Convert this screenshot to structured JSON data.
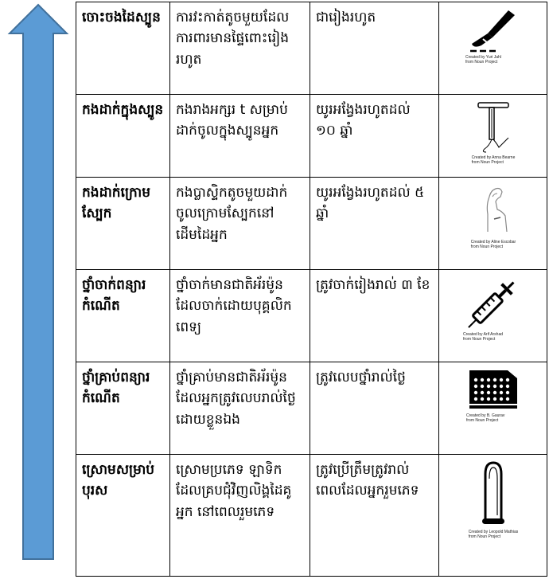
{
  "colors": {
    "arrow_fill": "#5b9bd5",
    "arrow_stroke": "#41719c",
    "border": "#000000"
  },
  "rows": [
    {
      "method": "ចោះចងដៃស្បូន",
      "description": "ការវះកាត់តូចមួយដែលការពារមានផ្ទៃពោះរៀងរហូត",
      "duration": "ជារៀងរហូត",
      "icon": "scalpel-icon",
      "credit": [
        "Created by Yuri Jahl",
        "from Noun Project"
      ]
    },
    {
      "method": "កងដាក់ក្នុងស្បូន",
      "description": "កងរាងអក្សរ t សម្រាប់ដាក់ចូលក្នុងស្បូនអ្នក",
      "duration": "យូរអង្វែងរហូតដល់ ១០ ឆ្នាំ",
      "icon": "iud-icon",
      "credit": [
        "Created by Anna Bearne",
        "from Noun Project"
      ]
    },
    {
      "method": "កងដាក់ក្រោមស្បែក",
      "description": "កងប្លាស្ទិកតូចមួយដាក់ចូលក្រោមស្បែកនៅដើមដៃអ្នក",
      "duration": "យូរអង្វែងរហូតដល់ ៥ ឆ្នាំ",
      "icon": "arm-implant-icon",
      "credit": [
        "Created by Aline Escobar",
        "from Noun Project"
      ]
    },
    {
      "method": "ថ្នាំចាក់ពន្យារកំណើត",
      "description": "ថ្នាំចាក់មានជាតិអ័រម៉ូនដែលចាក់ដោយបុគ្គលិកពេទ្យ",
      "duration": "ត្រូវចាក់រៀងរាល់ ៣ ខែ",
      "icon": "syringe-icon",
      "credit": [
        "Created by Arif Arshad",
        "from Noun Project"
      ]
    },
    {
      "method": "ថ្នាំគ្រាប់ពន្យារកំណើត",
      "description": "ថ្នាំគ្រាប់មានជាតិអ័រម៉ូនដែលអ្នកត្រូវលេបរាល់ថ្ងៃដោយខ្លួនឯង",
      "duration": "ត្រូវលេបថ្នាំរាល់ថ្ងៃ",
      "icon": "pill-pack-icon",
      "credit": [
        "Created by B. Gaurav",
        "from Noun Project"
      ]
    },
    {
      "method": "ស្រោមសម្រាប់បុរស",
      "description": "ស្រោមប្រភេទ ឡាទិក ដែលគ្របជុំវិញលិង្គដៃគូអ្នក នៅពេលរួមភេទ",
      "duration": "ត្រូវប្រើត្រឹមត្រូវរាល់ពេលដែលអ្នករួមភេទ",
      "icon": "condom-icon",
      "credit": [
        "Created by Leopold Mathias",
        "from Noun Project"
      ]
    }
  ]
}
